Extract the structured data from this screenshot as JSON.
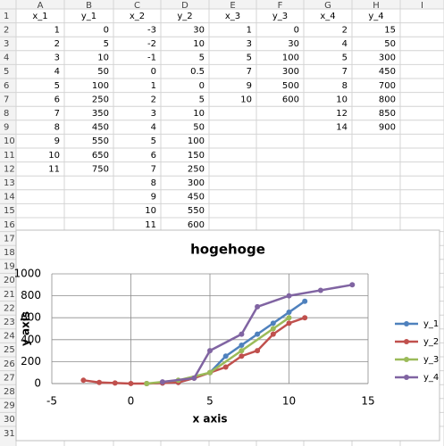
{
  "sheet": {
    "columns": [
      "A",
      "B",
      "C",
      "D",
      "E",
      "F",
      "G",
      "H",
      "I"
    ],
    "row_numbers": [
      1,
      2,
      3,
      4,
      5,
      6,
      7,
      8,
      9,
      10,
      11,
      12,
      13,
      14,
      15,
      16,
      17,
      18,
      19,
      20,
      21,
      22,
      23,
      24,
      25,
      26,
      27,
      28,
      29,
      30,
      31
    ],
    "rows": [
      [
        "x_1",
        "y_1",
        "x_2",
        "y_2",
        "x_3",
        "y_3",
        "x_4",
        "y_4"
      ],
      [
        1,
        0,
        -3,
        30,
        1,
        0,
        2,
        15
      ],
      [
        2,
        5,
        -2,
        10,
        3,
        30,
        4,
        50
      ],
      [
        3,
        10,
        -1,
        5,
        5,
        100,
        5,
        300
      ],
      [
        4,
        50,
        0,
        0.5,
        7,
        300,
        7,
        450
      ],
      [
        5,
        100,
        1,
        0,
        9,
        500,
        8,
        700
      ],
      [
        6,
        250,
        2,
        5,
        10,
        600,
        10,
        800
      ],
      [
        7,
        350,
        3,
        10,
        null,
        null,
        12,
        850
      ],
      [
        8,
        450,
        4,
        50,
        null,
        null,
        14,
        900
      ],
      [
        9,
        550,
        5,
        100,
        null,
        null,
        null,
        null
      ],
      [
        10,
        650,
        6,
        150,
        null,
        null,
        null,
        null
      ],
      [
        11,
        750,
        7,
        250,
        null,
        null,
        null,
        null
      ],
      [
        null,
        null,
        8,
        300,
        null,
        null,
        null,
        null
      ],
      [
        null,
        null,
        9,
        450,
        null,
        null,
        null,
        null
      ],
      [
        null,
        null,
        10,
        550,
        null,
        null,
        null,
        null
      ],
      [
        null,
        null,
        11,
        600,
        null,
        null,
        null,
        null
      ]
    ]
  },
  "chart_data": {
    "type": "line",
    "title": "hogehoge",
    "x_label": "x axis",
    "y_label": "y axis",
    "xlim": [
      -5,
      15
    ],
    "xticks": [
      -5,
      0,
      5,
      10,
      15
    ],
    "ylim": [
      0,
      1000
    ],
    "yticks": [
      0,
      200,
      400,
      600,
      800,
      1000
    ],
    "grid": true,
    "legend": "right",
    "series": [
      {
        "name": "y_1",
        "color": "#4f81bd",
        "x": [
          1,
          2,
          3,
          4,
          5,
          6,
          7,
          8,
          9,
          10,
          11
        ],
        "values": [
          0,
          5,
          10,
          50,
          100,
          250,
          350,
          450,
          550,
          650,
          750
        ]
      },
      {
        "name": "y_2",
        "color": "#c0504d",
        "x": [
          -3,
          -2,
          -1,
          0,
          1,
          2,
          3,
          4,
          5,
          6,
          7,
          8,
          9,
          10,
          11
        ],
        "values": [
          30,
          10,
          5,
          0.5,
          0,
          5,
          10,
          50,
          100,
          150,
          250,
          300,
          450,
          550,
          600
        ]
      },
      {
        "name": "y_3",
        "color": "#9bbb59",
        "x": [
          1,
          3,
          5,
          7,
          9,
          10
        ],
        "values": [
          0,
          30,
          100,
          300,
          500,
          600
        ]
      },
      {
        "name": "y_4",
        "color": "#8064a2",
        "x": [
          2,
          4,
          5,
          7,
          8,
          10,
          12,
          14
        ],
        "values": [
          15,
          50,
          300,
          450,
          700,
          800,
          850,
          900
        ]
      }
    ]
  }
}
